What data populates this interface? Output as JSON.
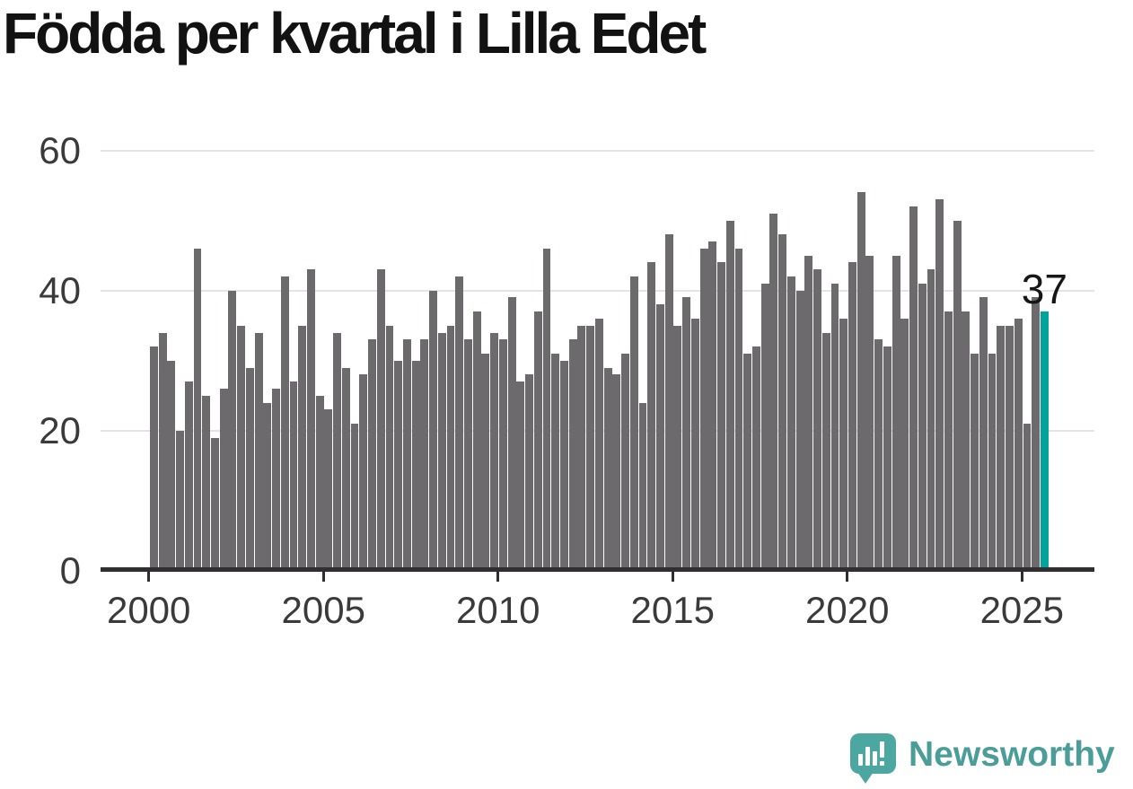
{
  "title": "Födda per kvartal i Lilla Edet",
  "annotation": {
    "text": "37"
  },
  "logo": {
    "text": "Newsworthy",
    "icon": "bar-chart-speech-bubble"
  },
  "colors": {
    "bar": "#6d6a6e",
    "highlight": "#00a49b",
    "axis": "#302e31",
    "gridline": "#e4e4e4",
    "tick_label": "#3a3a3a",
    "title": "#121212",
    "logo_teal": "#4ba7a0",
    "logo_text_teal": "#4a9d98"
  },
  "chart_data": {
    "type": "bar",
    "title": "Födda per kvartal i Lilla Edet",
    "unit": "födda per kvartal",
    "start_period": "2000 Q1",
    "end_period": "2025 Q3",
    "periods_per_year": 4,
    "values": [
      32,
      34,
      30,
      20,
      27,
      46,
      25,
      19,
      26,
      40,
      35,
      29,
      34,
      24,
      26,
      42,
      27,
      35,
      43,
      25,
      23,
      34,
      29,
      21,
      28,
      33,
      43,
      35,
      30,
      33,
      30,
      33,
      40,
      34,
      35,
      42,
      33,
      37,
      31,
      34,
      33,
      39,
      27,
      28,
      37,
      46,
      31,
      30,
      33,
      35,
      35,
      36,
      29,
      28,
      31,
      42,
      24,
      44,
      38,
      48,
      35,
      39,
      36,
      46,
      47,
      44,
      50,
      46,
      31,
      32,
      41,
      51,
      48,
      42,
      40,
      45,
      43,
      34,
      41,
      36,
      44,
      54,
      45,
      33,
      32,
      45,
      36,
      52,
      41,
      43,
      53,
      37,
      50,
      37,
      31,
      39,
      31,
      35,
      35,
      36,
      21,
      39,
      37
    ],
    "highlight_last": true,
    "highlight_value": 37,
    "ylim": [
      0,
      60
    ],
    "yticks": [
      0,
      20,
      40,
      60
    ],
    "x_tick_labels": [
      "2000",
      "2005",
      "2010",
      "2015",
      "2020",
      "2025"
    ],
    "x_ticks_every_n_quarters": 20,
    "grid": "horizontal",
    "legend": "none"
  }
}
